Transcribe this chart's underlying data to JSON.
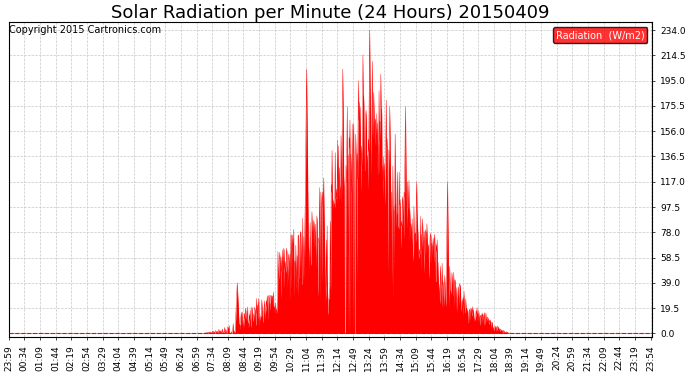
{
  "title": "Solar Radiation per Minute (24 Hours) 20150409",
  "copyright_text": "Copyright 2015 Cartronics.com",
  "fill_color": "#FF0000",
  "line_color": "#FF0000",
  "background_color": "#FFFFFF",
  "grid_color": "#C8C8C8",
  "dashed_line_color": "#FF0000",
  "yticks": [
    0.0,
    19.5,
    39.0,
    58.5,
    78.0,
    97.5,
    117.0,
    136.5,
    156.0,
    175.5,
    195.0,
    214.5,
    234.0
  ],
  "ylim": [
    -3,
    240
  ],
  "legend_label": "Radiation  (W/m2)",
  "legend_bg": "#FF0000",
  "legend_text_color": "#FFFFFF",
  "title_fontsize": 13,
  "tick_fontsize": 6.5,
  "copyright_fontsize": 7,
  "num_minutes": 1440
}
